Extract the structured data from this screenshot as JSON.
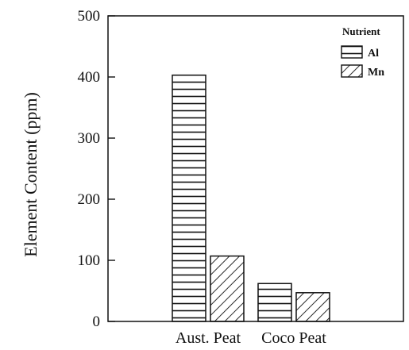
{
  "chart_data": {
    "type": "bar",
    "categories": [
      "Aust. Peat",
      "Coco Peat"
    ],
    "series": [
      {
        "name": "Al",
        "values": [
          403,
          62
        ],
        "pattern": "horizontal-lines"
      },
      {
        "name": "Mn",
        "values": [
          107,
          47
        ],
        "pattern": "diagonal-lines"
      }
    ],
    "title": "",
    "xlabel": "",
    "ylabel": "Element Content (ppm)",
    "ylim": [
      0,
      500
    ],
    "yticks": [
      0,
      100,
      200,
      300,
      400,
      500
    ],
    "grid": false,
    "legend": {
      "title": "Nutrient",
      "placement": "top-right"
    },
    "colors": {
      "bar_fill": "#ffffff",
      "stroke": "#111111"
    }
  }
}
